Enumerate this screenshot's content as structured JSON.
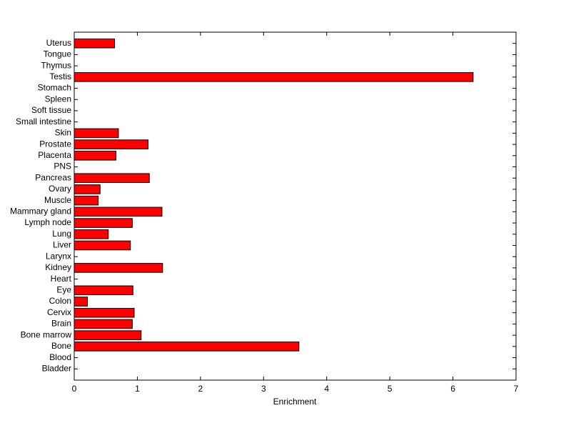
{
  "chart_data": {
    "type": "barh",
    "xlabel": "Enrichment",
    "categories": [
      "Bladder",
      "Blood",
      "Bone",
      "Bone marrow",
      "Brain",
      "Cervix",
      "Colon",
      "Eye",
      "Heart",
      "Kidney",
      "Larynx",
      "Liver",
      "Lung",
      "Lymph node",
      "Mammary gland",
      "Muscle",
      "Ovary",
      "Pancreas",
      "PNS",
      "Placenta",
      "Prostate",
      "Skin",
      "Small intestine",
      "Soft tissue",
      "Spleen",
      "Stomach",
      "Testis",
      "Thymus",
      "Tongue",
      "Uterus"
    ],
    "values": [
      0,
      0,
      3.56,
      1.06,
      0.92,
      0.95,
      0.21,
      0.93,
      0,
      1.4,
      0,
      0.89,
      0.54,
      0.92,
      1.39,
      0.38,
      0.41,
      1.19,
      0,
      0.66,
      1.17,
      0.7,
      0,
      0,
      0,
      0,
      6.32,
      0,
      0,
      0.64
    ],
    "color": "#ff0000",
    "xlim": [
      0,
      7
    ],
    "xticks": [
      0,
      1,
      2,
      3,
      4,
      5,
      6,
      7
    ]
  }
}
